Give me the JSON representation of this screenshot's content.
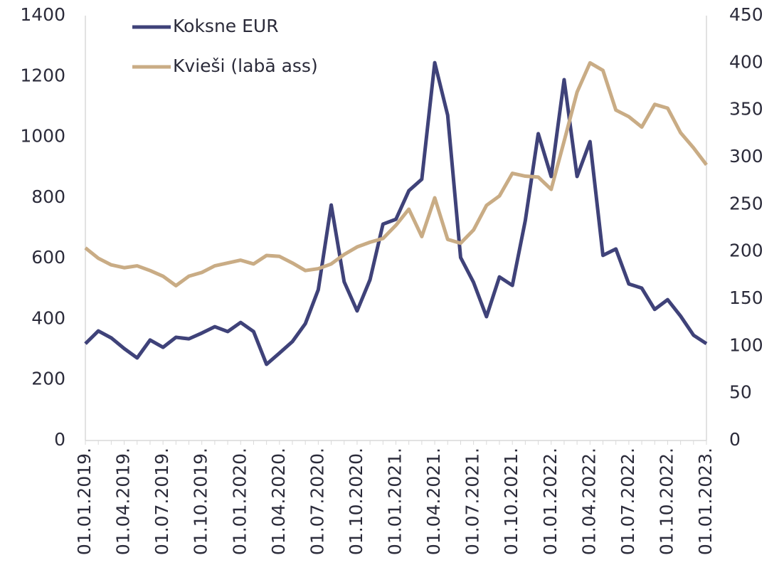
{
  "chart_data": {
    "type": "line",
    "categories": [
      "01.01.2019.",
      null,
      null,
      "01.04.2019.",
      null,
      null,
      "01.07.2019.",
      null,
      null,
      "01.10.2019.",
      null,
      null,
      "01.01.2020.",
      null,
      null,
      "01.04.2020.",
      null,
      null,
      "01.07.2020.",
      null,
      null,
      "01.10.2020.",
      null,
      null,
      "01.01.2021.",
      null,
      null,
      "01.04.2021.",
      null,
      null,
      "01.07.2021.",
      null,
      null,
      "01.10.2021.",
      null,
      null,
      "01.01.2022.",
      null,
      null,
      "01.04.2022.",
      null,
      null,
      "01.07.2022.",
      null,
      null,
      "01.10.2022.",
      null,
      null,
      "01.01.2023."
    ],
    "series": [
      {
        "name": "Koksne EUR",
        "color": "#3f4279",
        "axis": "y",
        "values": [
          319,
          361,
          338,
          303,
          272,
          331,
          307,
          340,
          335,
          354,
          375,
          359,
          389,
          359,
          251,
          288,
          326,
          385,
          497,
          776,
          523,
          427,
          530,
          713,
          729,
          823,
          861,
          1245,
          1072,
          603,
          521,
          408,
          539,
          511,
          725,
          1011,
          870,
          1189,
          870,
          985,
          610,
          631,
          516,
          502,
          432,
          464,
          410,
          347,
          319
        ]
      },
      {
        "name": "Kvieši (labā ass)",
        "color": "#c9ac85",
        "axis": "y2",
        "values": [
          204,
          193,
          186,
          183,
          185,
          180,
          174,
          164,
          174,
          178,
          185,
          188,
          191,
          187,
          196,
          195,
          188,
          180,
          182,
          187,
          197,
          205,
          210,
          214,
          228,
          245,
          216,
          257,
          213,
          209,
          223,
          249,
          259,
          283,
          280,
          279,
          266,
          317,
          369,
          400,
          392,
          350,
          343,
          332,
          356,
          352,
          326,
          310,
          292
        ]
      }
    ],
    "ylim": [
      0,
      1400
    ],
    "yticks": [
      0,
      200,
      400,
      600,
      800,
      1000,
      1200,
      1400
    ],
    "y2lim": [
      0,
      450
    ],
    "y2ticks": [
      0,
      50,
      100,
      150,
      200,
      250,
      300,
      350,
      400,
      450
    ],
    "grid": false,
    "legend": "top-left"
  }
}
